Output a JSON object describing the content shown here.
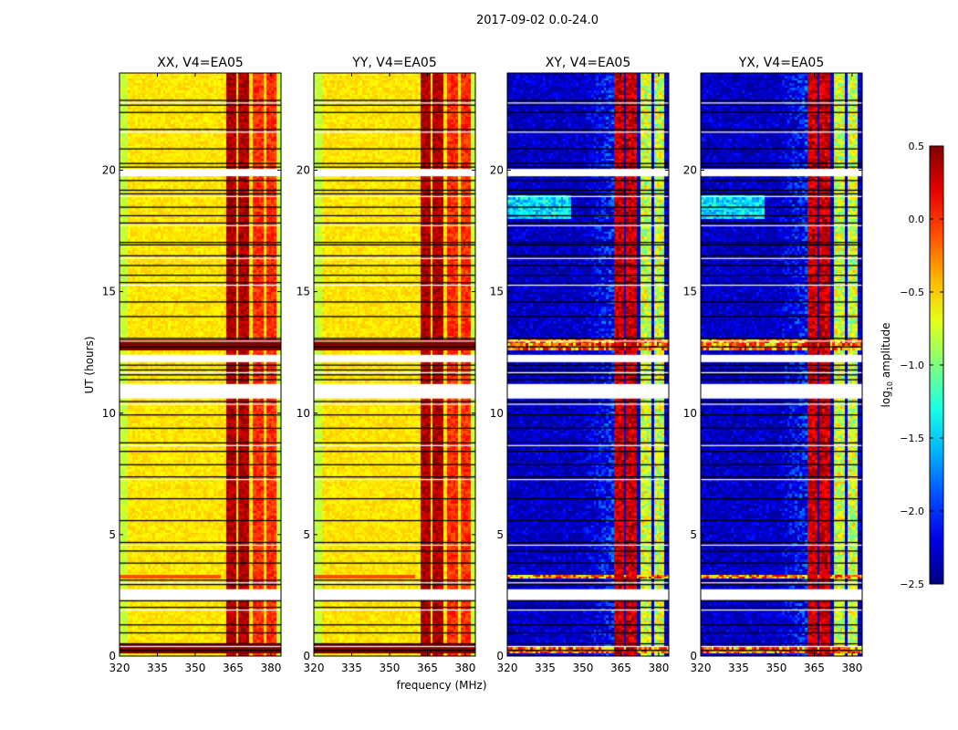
{
  "chart_data": {
    "type": "heatmap",
    "title": "2017-09-02 0.0-24.0",
    "ylabel": "UT (hours)",
    "xlabel": "frequency (MHz)",
    "xlim": [
      320,
      384
    ],
    "ylim": [
      0,
      24
    ],
    "xticks": [
      320,
      335,
      350,
      365,
      380
    ],
    "yticks": [
      0,
      5,
      10,
      15,
      20
    ],
    "panels": [
      {
        "title": "XX, V4=EA05",
        "kind": "auto"
      },
      {
        "title": "YY, V4=EA05",
        "kind": "auto"
      },
      {
        "title": "XY, V4=EA05",
        "kind": "cross"
      },
      {
        "title": "YX, V4=EA05",
        "kind": "cross"
      }
    ],
    "bright_bands_mhz": [
      [
        362,
        366
      ],
      [
        367,
        371
      ]
    ],
    "medium_bands_mhz": [
      [
        372.5,
        377
      ],
      [
        378,
        382
      ]
    ],
    "flagged_gaps_hours": [
      [
        19.75,
        20.05
      ],
      [
        12.1,
        12.4
      ],
      [
        10.6,
        11.2
      ],
      [
        2.3,
        2.75
      ]
    ],
    "flag_lines_hours": [
      22.9,
      22.7,
      22.4,
      21.7,
      20.9,
      20.3,
      20.15,
      19.6,
      19.2,
      19.05,
      18.5,
      18.15,
      17.85,
      17.05,
      16.95,
      16.5,
      16.1,
      15.7,
      15.4,
      14.6,
      14.0,
      13.1,
      12.75,
      12.0,
      11.8,
      11.6,
      11.4,
      10.5,
      9.95,
      9.4,
      8.8,
      8.45,
      7.9,
      7.4,
      6.5,
      5.6,
      4.7,
      4.35,
      3.85,
      3.15,
      2.97,
      2.3,
      2.03,
      1.31,
      0.98,
      0.53,
      0.26
    ],
    "colorbar": {
      "label": "log10 amplitude",
      "range": [
        -2.5,
        0.5
      ],
      "ticks": [
        "0.5",
        "0.0",
        "−0.5",
        "−1.0",
        "−1.5",
        "−2.0",
        "−2.5"
      ],
      "colormap": "jet"
    }
  }
}
